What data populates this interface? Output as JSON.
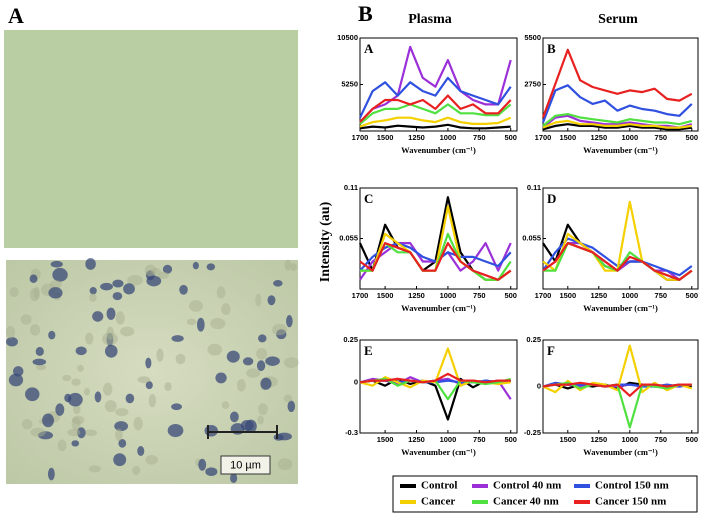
{
  "figure_labels": {
    "left": "A",
    "right": "B"
  },
  "columns": [
    "Plasma",
    "Serum"
  ],
  "ylabel": "Intensity (au)",
  "scale_bar": "10 µm",
  "chart_data": [
    {
      "type": "line",
      "label": "A",
      "xlabel": "Wavenumber (cm⁻¹)",
      "x": [
        1700,
        1600,
        1500,
        1400,
        1300,
        1200,
        1100,
        1000,
        900,
        800,
        700,
        600,
        500
      ],
      "xlim": [
        1700,
        450
      ],
      "xticks": [
        1700,
        1500,
        1250,
        1000,
        750,
        500
      ],
      "ylim": [
        0,
        10500
      ],
      "yticks": [
        5250,
        10500
      ],
      "series": [
        {
          "name": "Control",
          "color": "#000000",
          "values": [
            300,
            500,
            400,
            600,
            500,
            400,
            500,
            700,
            400,
            300,
            300,
            400,
            500
          ]
        },
        {
          "name": "Control 40 nm",
          "color": "#9b30d9",
          "values": [
            1000,
            2500,
            3000,
            4000,
            9500,
            6000,
            5000,
            8000,
            4500,
            3500,
            3000,
            3000,
            8000
          ]
        },
        {
          "name": "Control 150 nm",
          "color": "#3050e0",
          "values": [
            1500,
            4500,
            5500,
            4000,
            5500,
            4500,
            4000,
            6000,
            4500,
            4000,
            3500,
            3000,
            5000
          ]
        },
        {
          "name": "Cancer",
          "color": "#f5d000",
          "values": [
            500,
            1000,
            1200,
            1500,
            1500,
            1200,
            1000,
            1500,
            1000,
            800,
            800,
            900,
            1500
          ]
        },
        {
          "name": "Cancer 40 nm",
          "color": "#50e040",
          "values": [
            800,
            2000,
            2500,
            2500,
            3000,
            2500,
            2000,
            3000,
            2000,
            2000,
            1800,
            1800,
            3000
          ]
        },
        {
          "name": "Cancer 150 nm",
          "color": "#e82020",
          "values": [
            1000,
            2500,
            3500,
            3500,
            3000,
            3500,
            2500,
            4000,
            2500,
            3000,
            2000,
            2000,
            3500
          ]
        }
      ]
    },
    {
      "type": "line",
      "label": "B",
      "xlabel": "Wavenumber (cm⁻¹)",
      "x": [
        1700,
        1600,
        1500,
        1400,
        1300,
        1200,
        1100,
        1000,
        900,
        800,
        700,
        600,
        500
      ],
      "xlim": [
        1700,
        450
      ],
      "xticks": [
        1700,
        1500,
        1250,
        1000,
        750,
        500
      ],
      "ylim": [
        0,
        5500
      ],
      "yticks": [
        2750,
        5500
      ],
      "series": [
        {
          "name": "Control",
          "color": "#000000",
          "values": [
            100,
            300,
            400,
            300,
            300,
            200,
            200,
            300,
            200,
            200,
            100,
            100,
            200
          ]
        },
        {
          "name": "Control 40 nm",
          "color": "#9b30d9",
          "values": [
            200,
            800,
            900,
            600,
            500,
            400,
            400,
            500,
            400,
            300,
            300,
            200,
            400
          ]
        },
        {
          "name": "Control 150 nm",
          "color": "#3050e0",
          "values": [
            500,
            2400,
            2700,
            2000,
            1600,
            1800,
            1200,
            1500,
            1300,
            1200,
            1000,
            900,
            1600
          ]
        },
        {
          "name": "Cancer",
          "color": "#f5d000",
          "values": [
            200,
            500,
            600,
            400,
            400,
            300,
            300,
            400,
            300,
            300,
            200,
            200,
            300
          ]
        },
        {
          "name": "Cancer 40 nm",
          "color": "#50e040",
          "values": [
            300,
            900,
            1000,
            800,
            700,
            600,
            500,
            700,
            600,
            500,
            500,
            400,
            600
          ]
        },
        {
          "name": "Cancer 150 nm",
          "color": "#e82020",
          "values": [
            800,
            2800,
            4800,
            3000,
            2600,
            2400,
            2200,
            2400,
            2300,
            2500,
            1900,
            1800,
            2200
          ]
        }
      ]
    },
    {
      "type": "line",
      "label": "C",
      "xlabel": "Wavenumber (cm⁻¹)",
      "x": [
        1700,
        1600,
        1500,
        1400,
        1300,
        1200,
        1100,
        1000,
        900,
        800,
        700,
        600,
        500
      ],
      "xlim": [
        1700,
        450
      ],
      "xticks": [
        1700,
        1500,
        1250,
        1000,
        750,
        500
      ],
      "ylim": [
        0,
        0.11
      ],
      "yticks": [
        0.055,
        0.11
      ],
      "series": [
        {
          "name": "Control",
          "color": "#000000",
          "values": [
            0.05,
            0.02,
            0.07,
            0.045,
            0.04,
            0.02,
            0.03,
            0.1,
            0.04,
            0.02,
            0.01,
            0.01,
            0.02
          ]
        },
        {
          "name": "Control 40 nm",
          "color": "#9b30d9",
          "values": [
            0.01,
            0.03,
            0.04,
            0.05,
            0.05,
            0.03,
            0.03,
            0.04,
            0.02,
            0.03,
            0.05,
            0.02,
            0.05
          ]
        },
        {
          "name": "Control 150 nm",
          "color": "#3050e0",
          "values": [
            0.02,
            0.035,
            0.045,
            0.05,
            0.045,
            0.035,
            0.03,
            0.04,
            0.035,
            0.035,
            0.03,
            0.025,
            0.04
          ]
        },
        {
          "name": "Cancer",
          "color": "#f5d000",
          "values": [
            0.02,
            0.02,
            0.06,
            0.05,
            0.04,
            0.02,
            0.02,
            0.09,
            0.03,
            0.02,
            0.01,
            0.01,
            0.02
          ]
        },
        {
          "name": "Cancer 40 nm",
          "color": "#50e040",
          "values": [
            0.02,
            0.02,
            0.05,
            0.04,
            0.04,
            0.02,
            0.02,
            0.06,
            0.03,
            0.02,
            0.01,
            0.01,
            0.03
          ]
        },
        {
          "name": "Cancer 150 nm",
          "color": "#e82020",
          "values": [
            0.03,
            0.02,
            0.05,
            0.045,
            0.04,
            0.02,
            0.02,
            0.05,
            0.03,
            0.02,
            0.015,
            0.01,
            0.02
          ]
        }
      ]
    },
    {
      "type": "line",
      "label": "D",
      "xlabel": "Wavenumber (cm⁻¹)",
      "x": [
        1700,
        1600,
        1500,
        1400,
        1300,
        1200,
        1100,
        1000,
        900,
        800,
        700,
        600,
        500
      ],
      "xlim": [
        1700,
        450
      ],
      "xticks": [
        1700,
        1500,
        1250,
        1000,
        750,
        500
      ],
      "ylim": [
        0,
        0.11
      ],
      "yticks": [
        0.055,
        0.11
      ],
      "series": [
        {
          "name": "Control",
          "color": "#000000",
          "values": [
            0.05,
            0.03,
            0.07,
            0.05,
            0.04,
            0.025,
            0.02,
            0.03,
            0.03,
            0.02,
            0.01,
            0.01,
            0.02
          ]
        },
        {
          "name": "Control 40 nm",
          "color": "#9b30d9",
          "values": [
            0.02,
            0.03,
            0.05,
            0.05,
            0.04,
            0.03,
            0.02,
            0.03,
            0.03,
            0.02,
            0.02,
            0.01,
            0.02
          ]
        },
        {
          "name": "Control 150 nm",
          "color": "#3050e0",
          "values": [
            0.02,
            0.04,
            0.055,
            0.05,
            0.045,
            0.035,
            0.025,
            0.03,
            0.03,
            0.025,
            0.02,
            0.015,
            0.025
          ]
        },
        {
          "name": "Cancer",
          "color": "#f5d000",
          "values": [
            0.03,
            0.02,
            0.06,
            0.05,
            0.04,
            0.02,
            0.02,
            0.095,
            0.03,
            0.02,
            0.01,
            0.01,
            0.02
          ]
        },
        {
          "name": "Cancer 40 nm",
          "color": "#50e040",
          "values": [
            0.02,
            0.02,
            0.05,
            0.045,
            0.04,
            0.025,
            0.02,
            0.04,
            0.03,
            0.02,
            0.015,
            0.01,
            0.02
          ]
        },
        {
          "name": "Cancer 150 nm",
          "color": "#e82020",
          "values": [
            0.02,
            0.03,
            0.05,
            0.045,
            0.04,
            0.03,
            0.02,
            0.035,
            0.03,
            0.02,
            0.015,
            0.01,
            0.02
          ]
        }
      ]
    },
    {
      "type": "line",
      "label": "E",
      "xlabel": "Wavenumber (cm⁻¹)",
      "x": [
        1700,
        1600,
        1500,
        1400,
        1300,
        1200,
        1100,
        1000,
        900,
        800,
        700,
        600,
        500
      ],
      "xlim": [
        1700,
        450
      ],
      "xticks": [
        1500,
        1250,
        1000,
        750,
        500
      ],
      "ylim": [
        -0.3,
        0.25
      ],
      "yticks": [
        -0.3,
        0,
        0.25
      ],
      "series": [
        {
          "name": "Control",
          "color": "#000000",
          "values": [
            0,
            0.01,
            -0.02,
            0.02,
            -0.01,
            0.01,
            -0.02,
            -0.22,
            0.02,
            -0.03,
            0.01,
            0,
            0.01
          ]
        },
        {
          "name": "Control 40 nm",
          "color": "#9b30d9",
          "values": [
            0,
            0.02,
            0.01,
            -0.01,
            0.03,
            0,
            0.01,
            0.02,
            -0.01,
            0.01,
            0,
            0.01,
            -0.1
          ]
        },
        {
          "name": "Control 150 nm",
          "color": "#3050e0",
          "values": [
            0,
            0.01,
            0.01,
            0,
            0.01,
            0,
            0,
            0.01,
            0,
            0,
            0.01,
            0,
            0.01
          ]
        },
        {
          "name": "Cancer",
          "color": "#f5d000",
          "values": [
            0,
            -0.02,
            0.03,
            0,
            -0.03,
            0.01,
            0,
            0.2,
            -0.02,
            0.01,
            0,
            -0.01,
            0
          ]
        },
        {
          "name": "Cancer 40 nm",
          "color": "#50e040",
          "values": [
            0,
            0.01,
            0.02,
            -0.02,
            0.01,
            0,
            0.01,
            -0.1,
            0.01,
            0,
            -0.01,
            0,
            0.02
          ]
        },
        {
          "name": "Cancer 150 nm",
          "color": "#e82020",
          "values": [
            0,
            0.01,
            0.01,
            0.02,
            0.01,
            0,
            0.01,
            0.05,
            0.01,
            0.01,
            0,
            0.01,
            0.01
          ]
        }
      ]
    },
    {
      "type": "line",
      "label": "F",
      "xlabel": "Wavenumber (cm⁻¹)",
      "x": [
        1700,
        1600,
        1500,
        1400,
        1300,
        1200,
        1100,
        1000,
        900,
        800,
        700,
        600,
        500
      ],
      "xlim": [
        1700,
        450
      ],
      "xticks": [
        1500,
        1250,
        1000,
        750,
        500
      ],
      "ylim": [
        -0.25,
        0.25
      ],
      "yticks": [
        -0.25,
        0,
        0.25
      ],
      "series": [
        {
          "name": "Control",
          "color": "#000000",
          "values": [
            0,
            0.01,
            -0.01,
            0.01,
            0,
            0.01,
            -0.01,
            0.02,
            0.01,
            0,
            0,
            0.01,
            0
          ]
        },
        {
          "name": "Control 40 nm",
          "color": "#9b30d9",
          "values": [
            0,
            0.01,
            0.01,
            0,
            0.01,
            0,
            0,
            0.01,
            0,
            0.01,
            0,
            0,
            0.01
          ]
        },
        {
          "name": "Control 150 nm",
          "color": "#3050e0",
          "values": [
            0,
            0.02,
            0.01,
            0.01,
            0.01,
            0,
            0.01,
            0.01,
            0,
            0,
            0.01,
            0,
            0.01
          ]
        },
        {
          "name": "Cancer",
          "color": "#f5d000",
          "values": [
            0,
            -0.03,
            0.03,
            -0.02,
            0.02,
            0.01,
            -0.02,
            0.22,
            -0.03,
            0.02,
            -0.02,
            0.01,
            -0.01
          ]
        },
        {
          "name": "Cancer 40 nm",
          "color": "#50e040",
          "values": [
            0,
            0.01,
            0.02,
            -0.01,
            0.01,
            0,
            0.01,
            -0.22,
            0.01,
            0,
            -0.01,
            0.01,
            0.01
          ]
        },
        {
          "name": "Cancer 150 nm",
          "color": "#e82020",
          "values": [
            0,
            0.01,
            0.01,
            0.02,
            0.01,
            0,
            0.01,
            -0.05,
            0.01,
            0.01,
            0,
            0.01,
            0.01
          ]
        }
      ]
    }
  ]
}
